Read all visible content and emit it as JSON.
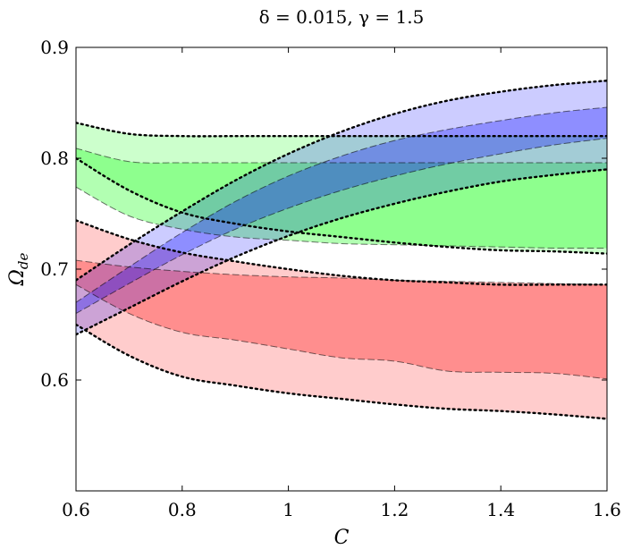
{
  "chart_data": {
    "type": "area",
    "title": "δ = 0.015, γ = 1.5",
    "xlabel": "C",
    "ylabel": "Ω_de",
    "ylabel_main": "Ω",
    "ylabel_sub": "de",
    "xlim": [
      0.6,
      1.6
    ],
    "ylim": [
      0.5,
      0.9
    ],
    "xticks": [
      0.6,
      0.8,
      1.0,
      1.2,
      1.4,
      1.6
    ],
    "xtick_labels": [
      "0.6",
      "0.8",
      "1",
      "1.2",
      "1.4",
      "1.6"
    ],
    "yticks": [
      0.6,
      0.7,
      0.8,
      0.9
    ],
    "ytick_labels": [
      "0.6",
      "0.7",
      "0.8",
      "0.9"
    ],
    "series": [
      {
        "name": "red",
        "color": "#ff0000",
        "x": [
          0.6,
          0.7,
          0.8,
          0.9,
          1.0,
          1.1,
          1.2,
          1.3,
          1.4,
          1.5,
          1.6
        ],
        "outer_upper": [
          0.744,
          0.727,
          0.715,
          0.707,
          0.7,
          0.694,
          0.69,
          0.688,
          0.686,
          0.686,
          0.686
        ],
        "inner_upper": [
          0.708,
          0.702,
          0.698,
          0.695,
          0.693,
          0.692,
          0.69,
          0.689,
          0.688,
          0.687,
          0.686
        ],
        "inner_lower": [
          0.686,
          0.66,
          0.643,
          0.636,
          0.628,
          0.62,
          0.617,
          0.608,
          0.607,
          0.606,
          0.601
        ],
        "outer_lower": [
          0.65,
          0.622,
          0.603,
          0.595,
          0.588,
          0.583,
          0.578,
          0.574,
          0.572,
          0.569,
          0.565
        ]
      },
      {
        "name": "green",
        "color": "#00ff00",
        "x": [
          0.6,
          0.7,
          0.8,
          0.9,
          1.0,
          1.1,
          1.2,
          1.3,
          1.4,
          1.5,
          1.6
        ],
        "outer_upper": [
          0.832,
          0.822,
          0.82,
          0.82,
          0.82,
          0.82,
          0.82,
          0.82,
          0.82,
          0.82,
          0.82
        ],
        "inner_upper": [
          0.809,
          0.797,
          0.796,
          0.796,
          0.796,
          0.796,
          0.796,
          0.796,
          0.796,
          0.796,
          0.796
        ],
        "inner_lower": [
          0.774,
          0.748,
          0.736,
          0.729,
          0.726,
          0.723,
          0.722,
          0.721,
          0.72,
          0.719,
          0.719
        ],
        "outer_lower": [
          0.8,
          0.771,
          0.751,
          0.741,
          0.734,
          0.729,
          0.724,
          0.72,
          0.717,
          0.716,
          0.714
        ]
      },
      {
        "name": "blue",
        "color": "#0000ff",
        "x": [
          0.6,
          0.7,
          0.8,
          0.9,
          1.0,
          1.1,
          1.2,
          1.3,
          1.4,
          1.5,
          1.6
        ],
        "outer_upper": [
          0.69,
          0.722,
          0.752,
          0.78,
          0.804,
          0.824,
          0.84,
          0.852,
          0.86,
          0.866,
          0.87
        ],
        "inner_upper": [
          0.67,
          0.702,
          0.733,
          0.761,
          0.784,
          0.802,
          0.816,
          0.826,
          0.834,
          0.841,
          0.846
        ],
        "inner_lower": [
          0.66,
          0.687,
          0.713,
          0.736,
          0.755,
          0.771,
          0.784,
          0.795,
          0.804,
          0.812,
          0.818
        ],
        "outer_lower": [
          0.641,
          0.665,
          0.689,
          0.711,
          0.73,
          0.746,
          0.759,
          0.77,
          0.779,
          0.785,
          0.79
        ]
      }
    ]
  }
}
